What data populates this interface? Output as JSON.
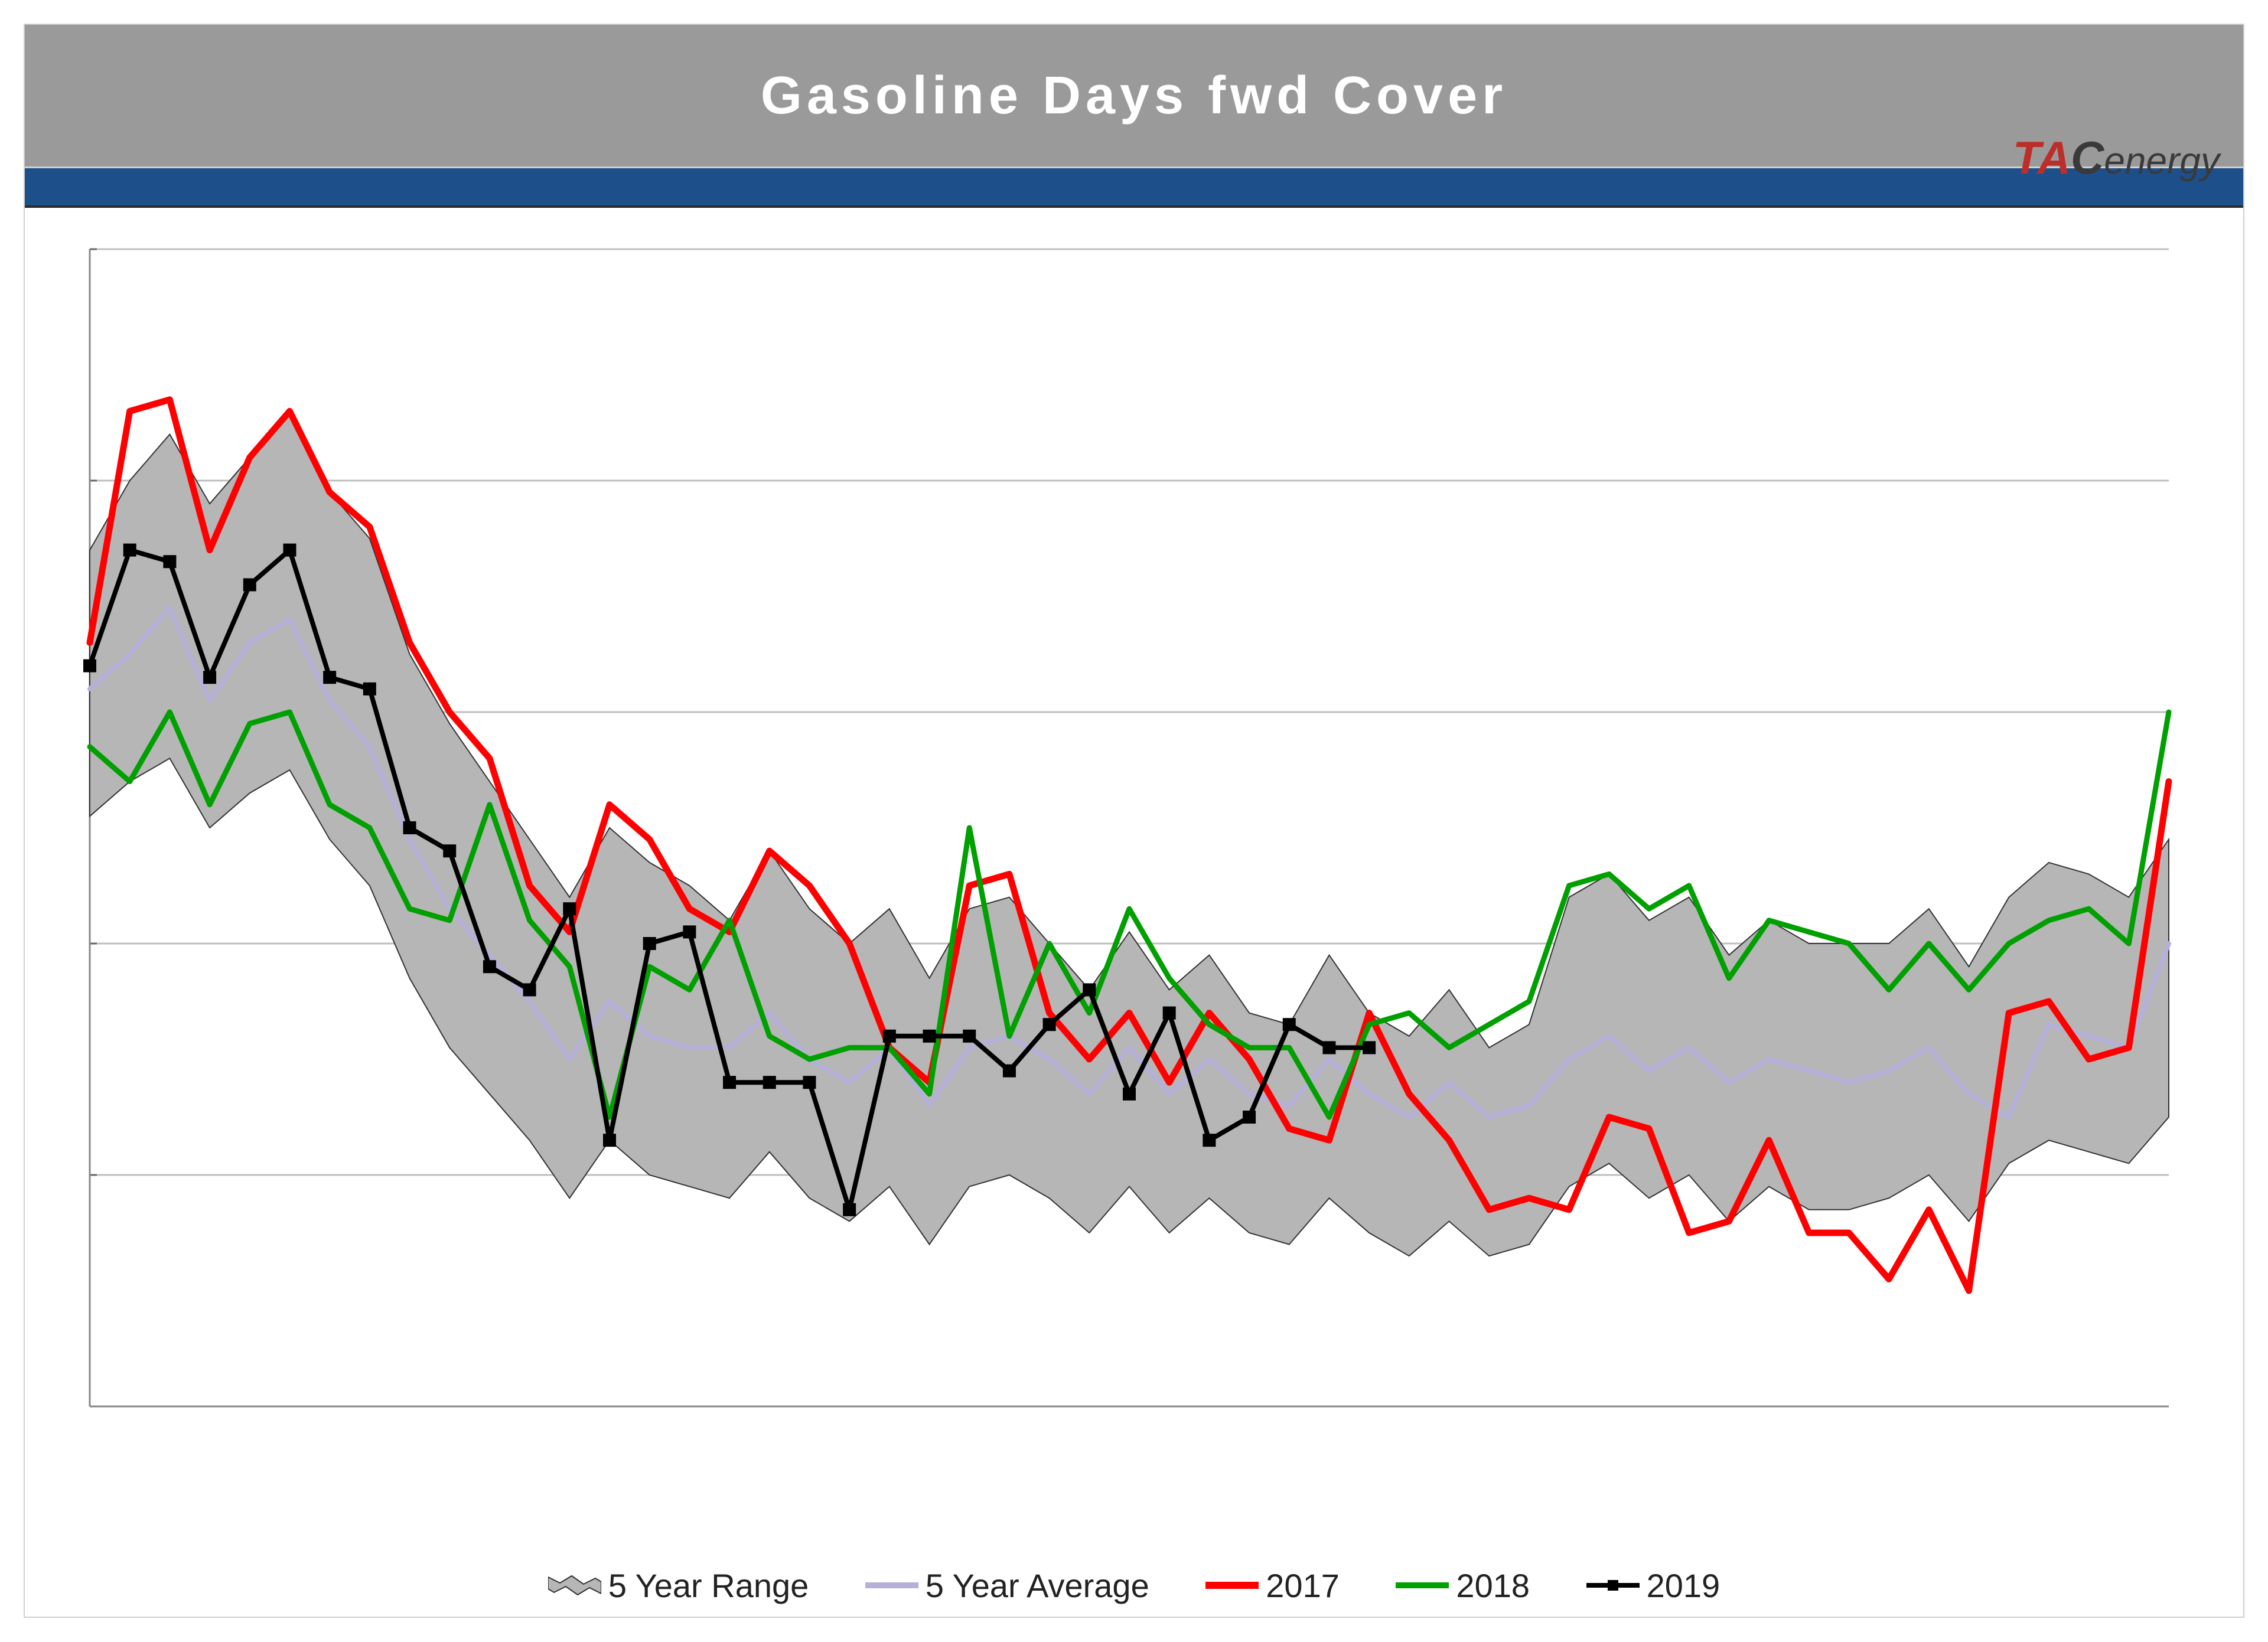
{
  "title": "Gasoline Days fwd Cover",
  "logo": {
    "tac": "TAC",
    "energy": "energy"
  },
  "chart": {
    "type": "line_with_range",
    "background_color": "#ffffff",
    "title_bar_color": "#9a9a9a",
    "title_text_color": "#ffffff",
    "title_fontsize_pt": 68,
    "accent_bar_color": "#1d4f8b",
    "grid_color": "#bfbfbf",
    "axis_color": "#666666",
    "legend_fontsize_pt": 42,
    "xlim": [
      1,
      53
    ],
    "ylim": [
      21,
      31
    ],
    "ytick_step": 2,
    "x_weeks": [
      1,
      2,
      3,
      4,
      5,
      6,
      7,
      8,
      9,
      10,
      11,
      12,
      13,
      14,
      15,
      16,
      17,
      18,
      19,
      20,
      21,
      22,
      23,
      24,
      25,
      26,
      27,
      28,
      29,
      30,
      31,
      32,
      33,
      34,
      35,
      36,
      37,
      38,
      39,
      40,
      41,
      42,
      43,
      44,
      45,
      46,
      47,
      48,
      49,
      50,
      51,
      52,
      53
    ],
    "range_fill_color": "#b6b6b6",
    "range_border_color": "#333333",
    "range_high": [
      28.4,
      29.0,
      29.4,
      28.8,
      29.2,
      29.6,
      28.9,
      28.5,
      27.5,
      26.9,
      26.4,
      25.9,
      25.4,
      26.0,
      25.7,
      25.5,
      25.2,
      25.8,
      25.3,
      25.0,
      25.3,
      24.7,
      25.3,
      25.4,
      25.0,
      24.6,
      25.1,
      24.6,
      24.9,
      24.4,
      24.3,
      24.9,
      24.4,
      24.2,
      24.6,
      24.1,
      24.3,
      25.4,
      25.6,
      25.2,
      25.4,
      24.9,
      25.2,
      25.0,
      25.0,
      25.0,
      25.3,
      24.8,
      25.4,
      25.7,
      25.6,
      25.4,
      25.9
    ],
    "range_low": [
      26.1,
      26.4,
      26.6,
      26.0,
      26.3,
      26.5,
      25.9,
      25.5,
      24.7,
      24.1,
      23.7,
      23.3,
      22.8,
      23.3,
      23.0,
      22.9,
      22.8,
      23.2,
      22.8,
      22.6,
      22.9,
      22.4,
      22.9,
      23.0,
      22.8,
      22.5,
      22.9,
      22.5,
      22.8,
      22.5,
      22.4,
      22.8,
      22.5,
      22.3,
      22.6,
      22.3,
      22.4,
      22.9,
      23.1,
      22.8,
      23.0,
      22.6,
      22.9,
      22.7,
      22.7,
      22.8,
      23.0,
      22.6,
      23.1,
      23.3,
      23.2,
      23.1,
      23.5
    ],
    "series": {
      "avg": {
        "label": "5 Year Average",
        "color": "#b5b0d8",
        "line_width": 8,
        "values": [
          27.2,
          27.5,
          27.9,
          27.1,
          27.6,
          27.8,
          27.1,
          26.7,
          25.9,
          25.3,
          24.9,
          24.5,
          24.0,
          24.5,
          24.2,
          24.1,
          24.1,
          24.4,
          24.0,
          23.8,
          24.1,
          23.6,
          24.1,
          24.2,
          24.0,
          23.7,
          24.1,
          23.7,
          24.0,
          23.7,
          23.6,
          24.0,
          23.7,
          23.5,
          23.8,
          23.5,
          23.6,
          24.0,
          24.2,
          23.9,
          24.1,
          23.8,
          24.0,
          23.9,
          23.8,
          23.9,
          24.1,
          23.7,
          23.5,
          24.3,
          24.2,
          24.1,
          25.0
        ]
      },
      "y2017": {
        "label": "2017",
        "color": "#ff0000",
        "line_width": 11,
        "values": [
          27.6,
          29.6,
          29.7,
          28.4,
          29.2,
          29.6,
          28.9,
          28.6,
          27.6,
          27.0,
          26.6,
          25.5,
          25.1,
          26.2,
          25.9,
          25.3,
          25.1,
          25.8,
          25.5,
          25.0,
          24.1,
          23.8,
          25.5,
          25.6,
          24.4,
          24.0,
          24.4,
          23.8,
          24.4,
          24.0,
          23.4,
          23.3,
          24.4,
          23.7,
          23.3,
          22.7,
          22.8,
          22.7,
          23.5,
          23.4,
          22.5,
          22.6,
          23.3,
          22.5,
          22.5,
          22.1,
          22.7,
          22.0,
          24.4,
          24.5,
          24.0,
          24.1,
          26.4
        ]
      },
      "y2018": {
        "label": "2018",
        "color": "#00a000",
        "line_width": 9,
        "values": [
          26.7,
          26.4,
          27.0,
          26.2,
          26.9,
          27.0,
          26.2,
          26.0,
          25.3,
          25.2,
          26.2,
          25.2,
          24.8,
          23.5,
          24.8,
          24.6,
          25.2,
          24.2,
          24.0,
          24.1,
          24.1,
          23.7,
          26.0,
          24.2,
          25.0,
          24.4,
          25.3,
          24.7,
          24.3,
          24.1,
          24.1,
          23.5,
          24.3,
          24.4,
          24.1,
          24.3,
          24.5,
          25.5,
          25.6,
          25.3,
          25.5,
          24.7,
          25.2,
          25.1,
          25.0,
          24.6,
          25.0,
          24.6,
          25.0,
          25.2,
          25.3,
          25.0,
          27.0
        ]
      },
      "y2019": {
        "label": "2019",
        "color": "#000000",
        "line_width": 8,
        "marker": "square",
        "marker_size": 22,
        "values": [
          27.4,
          28.4,
          28.3,
          27.3,
          28.1,
          28.4,
          27.3,
          27.2,
          26.0,
          25.8,
          24.8,
          24.6,
          25.3,
          23.3,
          25.0,
          25.1,
          23.8,
          23.8,
          23.8,
          22.7,
          24.2,
          24.2,
          24.2,
          23.9,
          24.3,
          24.6,
          23.7,
          24.4,
          23.3,
          23.5,
          24.3,
          24.1,
          24.1
        ]
      }
    },
    "legend_order": [
      "range",
      "avg",
      "y2017",
      "y2018",
      "y2019"
    ],
    "legend_labels": {
      "range": "5 Year Range",
      "avg": "5 Year Average",
      "y2017": "2017",
      "y2018": "2018",
      "y2019": "2019"
    }
  }
}
